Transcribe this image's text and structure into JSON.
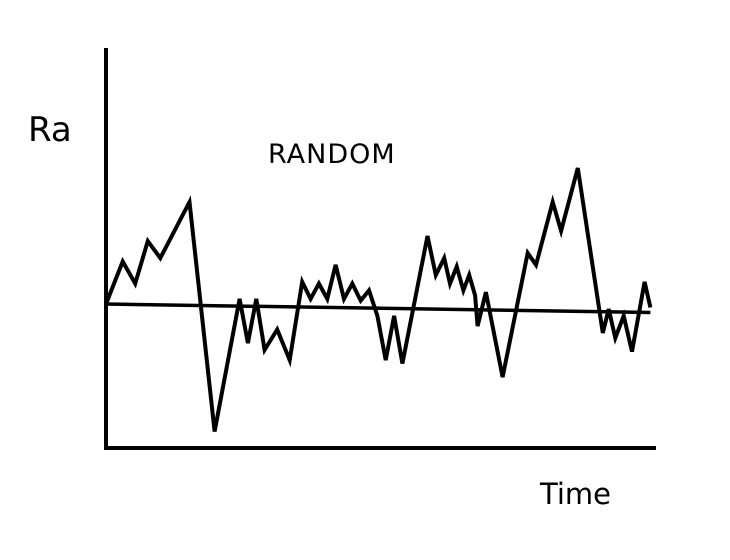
{
  "diagram": {
    "title": "RANDOM",
    "y_axis_label": "Ra",
    "x_axis_label": "Time",
    "line_color": "#000000",
    "curves": [
      {
        "role": "random-signal",
        "points": [
          [
            0,
            0
          ],
          [
            0.2,
            0.25
          ],
          [
            0.35,
            0.12
          ],
          [
            0.5,
            0.37
          ],
          [
            0.65,
            0.27
          ],
          [
            1.0,
            0.6
          ],
          [
            1.3,
            -0.75
          ],
          [
            1.6,
            0.03
          ],
          [
            1.7,
            -0.23
          ],
          [
            1.8,
            0.03
          ],
          [
            1.9,
            -0.27
          ],
          [
            2.05,
            -0.15
          ],
          [
            2.2,
            -0.33
          ],
          [
            2.35,
            0.13
          ],
          [
            2.45,
            0.03
          ],
          [
            2.55,
            0.12
          ],
          [
            2.65,
            0.03
          ],
          [
            2.75,
            0.23
          ],
          [
            2.85,
            0.03
          ],
          [
            2.95,
            0.12
          ],
          [
            3.05,
            0.02
          ],
          [
            3.15,
            0.08
          ],
          [
            3.25,
            -0.07
          ],
          [
            3.35,
            -0.33
          ],
          [
            3.45,
            -0.07
          ],
          [
            3.55,
            -0.35
          ],
          [
            3.85,
            0.4
          ],
          [
            3.95,
            0.17
          ],
          [
            4.05,
            0.27
          ],
          [
            4.12,
            0.12
          ],
          [
            4.2,
            0.22
          ],
          [
            4.28,
            0.08
          ],
          [
            4.35,
            0.17
          ],
          [
            4.42,
            0.05
          ],
          [
            4.45,
            -0.13
          ],
          [
            4.55,
            0.07
          ],
          [
            4.75,
            -0.43
          ],
          [
            5.05,
            0.3
          ],
          [
            5.15,
            0.23
          ],
          [
            5.35,
            0.6
          ],
          [
            5.45,
            0.43
          ],
          [
            5.65,
            0.8
          ],
          [
            5.95,
            -0.17
          ],
          [
            6.02,
            -0.03
          ],
          [
            6.1,
            -0.2
          ],
          [
            6.2,
            -0.07
          ],
          [
            6.3,
            -0.28
          ],
          [
            6.45,
            0.13
          ],
          [
            6.52,
            -0.02
          ]
        ]
      },
      {
        "role": "mean-line",
        "points": [
          [
            0,
            0
          ],
          [
            6.52,
            -0.05
          ]
        ]
      }
    ]
  }
}
